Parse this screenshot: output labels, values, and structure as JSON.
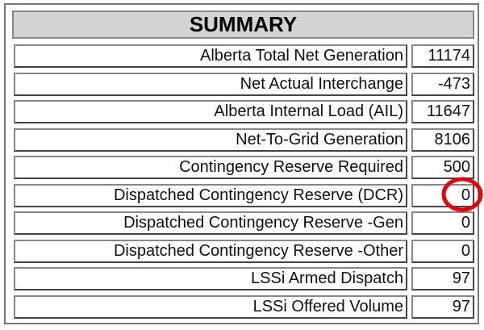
{
  "table": {
    "title": "SUMMARY",
    "rows": [
      [
        "Alberta Total Net Generation",
        11174
      ],
      [
        "Net Actual Interchange",
        -473
      ],
      [
        "Alberta Internal Load (AIL)",
        11647
      ],
      [
        "Net-To-Grid Generation",
        8106
      ],
      [
        "Contingency Reserve Required",
        500
      ],
      [
        "Dispatched Contingency Reserve (DCR)",
        0
      ],
      [
        "Dispatched Contingency Reserve -Gen",
        0
      ],
      [
        "Dispatched Contingency Reserve -Other",
        0
      ],
      [
        "LSSi Armed Dispatch",
        97
      ],
      [
        "LSSi Offered Volume",
        97
      ]
    ]
  }
}
